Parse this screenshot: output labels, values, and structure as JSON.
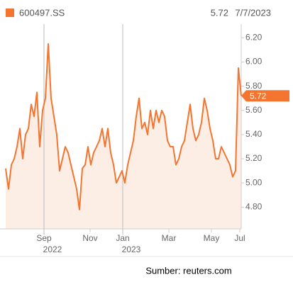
{
  "chart_data": {
    "type": "area",
    "series": [
      {
        "name": "600497.SS",
        "color": "#f47530",
        "fill": "#fdeee5",
        "values": [
          5.12,
          4.95,
          5.15,
          5.2,
          5.3,
          5.45,
          5.2,
          5.4,
          5.45,
          5.65,
          5.55,
          5.75,
          5.3,
          5.6,
          5.7,
          6.15,
          5.7,
          5.55,
          5.4,
          5.1,
          5.2,
          5.3,
          5.25,
          5.15,
          5.05,
          4.95,
          4.78,
          5.12,
          5.15,
          5.3,
          5.15,
          5.25,
          5.3,
          5.35,
          5.45,
          5.3,
          5.45,
          5.25,
          5.15,
          5.0,
          5.05,
          5.1,
          5.0,
          5.15,
          5.25,
          5.35,
          5.55,
          5.7,
          5.45,
          5.5,
          5.4,
          5.6,
          5.45,
          5.6,
          5.5,
          5.6,
          5.55,
          5.35,
          5.3,
          5.3,
          5.15,
          5.2,
          5.3,
          5.35,
          5.5,
          5.65,
          5.45,
          5.35,
          5.4,
          5.5,
          5.7,
          5.6,
          5.45,
          5.35,
          5.2,
          5.2,
          5.3,
          5.25,
          5.2,
          5.15,
          5.05,
          5.1,
          5.95,
          5.72
        ]
      }
    ],
    "date": "7/7/2023",
    "xlim": [
      0,
      83
    ],
    "xticks": [
      {
        "value": 13.5,
        "label": "Sep"
      },
      {
        "value": 29.75,
        "label": "Nov"
      },
      {
        "value": 41.25,
        "label": "Jan"
      },
      {
        "value": 57.5,
        "label": "Mar"
      },
      {
        "value": 72.5,
        "label": "May"
      },
      {
        "value": 82.5,
        "label": "Jul"
      }
    ],
    "xtick_years": [
      {
        "value": 13.5,
        "label": "2022"
      },
      {
        "value": 41.25,
        "label": "2023"
      }
    ],
    "ylim": [
      4.62,
      6.29
    ],
    "yticks": [
      {
        "value": 4.8,
        "label": "4.80"
      },
      {
        "value": 5.0,
        "label": "5.00"
      },
      {
        "value": 5.2,
        "label": "5.20"
      },
      {
        "value": 5.4,
        "label": "5.40"
      },
      {
        "value": 5.6,
        "label": "5.60"
      },
      {
        "value": 5.8,
        "label": "5.80"
      },
      {
        "value": 6.0,
        "label": "6.00"
      },
      {
        "value": 6.2,
        "label": "6.20"
      }
    ],
    "source": "Sumber: reuters.com"
  }
}
